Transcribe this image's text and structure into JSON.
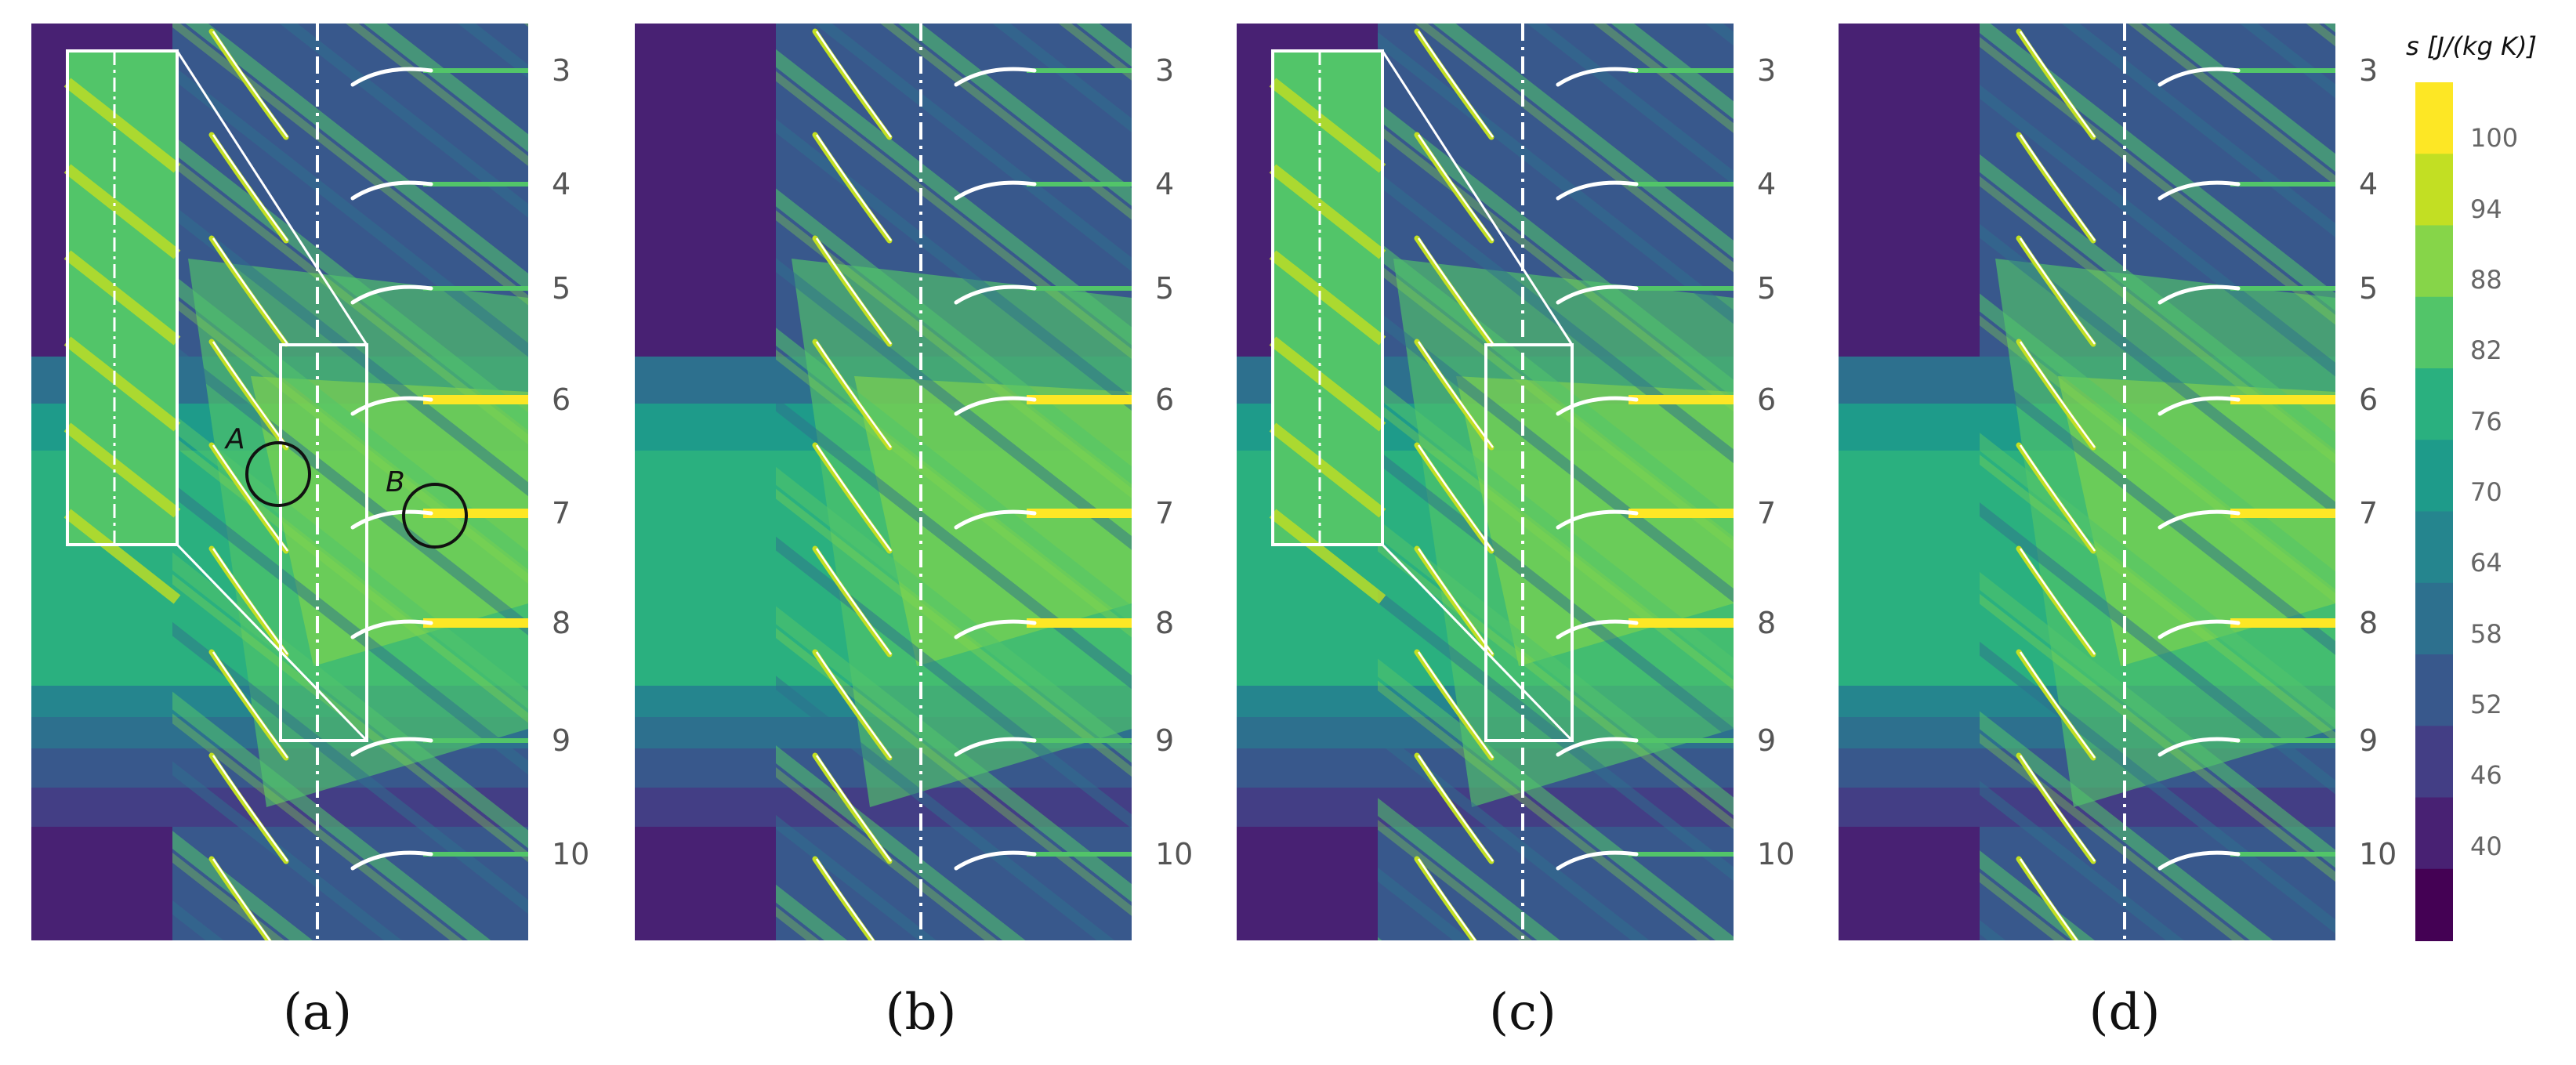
{
  "panels": [
    {
      "id": "a",
      "caption": "(a)",
      "row_labels": [
        "3",
        "4",
        "5",
        "6",
        "7",
        "8",
        "9",
        "10"
      ],
      "zoom_box": true,
      "markers": [
        "A",
        "B"
      ]
    },
    {
      "id": "b",
      "caption": "(b)",
      "row_labels": [
        "3",
        "4",
        "5",
        "6",
        "7",
        "8",
        "9",
        "10"
      ],
      "zoom_box": false,
      "markers": []
    },
    {
      "id": "c",
      "caption": "(c)",
      "row_labels": [
        "3",
        "4",
        "5",
        "6",
        "7",
        "8",
        "9",
        "10"
      ],
      "zoom_box": true,
      "markers": []
    },
    {
      "id": "d",
      "caption": "(d)",
      "row_labels": [
        "3",
        "4",
        "5",
        "6",
        "7",
        "8",
        "9",
        "10"
      ],
      "zoom_box": false,
      "markers": []
    }
  ],
  "colorbar": {
    "title": "s [J/(kg K)]",
    "ticks": [
      "100",
      "94",
      "88",
      "82",
      "76",
      "70",
      "64",
      "58",
      "52",
      "46",
      "40"
    ],
    "colors": [
      "#fde725",
      "#c2df23",
      "#86d549",
      "#52c569",
      "#2ab07f",
      "#1e9b8a",
      "#25858e",
      "#2d708e",
      "#38588c",
      "#433e85",
      "#482173",
      "#440154"
    ]
  },
  "colors": {
    "background_low": "#482173",
    "mid_band": "#2ab07f",
    "high": "#86d549",
    "peak": "#fde725",
    "overlay_line": "#ffffff",
    "marker_circle": "#111111"
  }
}
